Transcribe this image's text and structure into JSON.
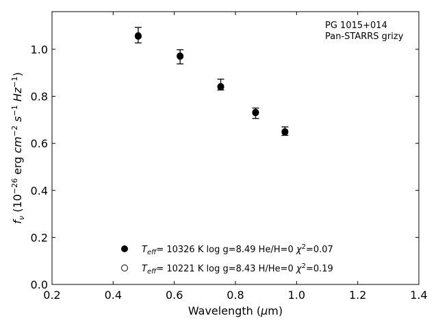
{
  "chart_data": {
    "type": "scatter",
    "annotation": [
      "PG 1015+014",
      "Pan-STARRS grizy"
    ],
    "xlabel": "Wavelength (μm)",
    "ylabel": "f_ν (10^-26 erg cm^-2 s^-1 Hz^-1)",
    "xlim": [
      0.2,
      1.4
    ],
    "ylim": [
      0.0,
      1.16
    ],
    "xticks": [
      "0.2",
      "0.4",
      "0.6",
      "0.8",
      "1.0",
      "1.2",
      "1.4"
    ],
    "yticks": [
      "0.0",
      "0.2",
      "0.4",
      "0.6",
      "0.8",
      "1.0"
    ],
    "grid": false,
    "legend_position": "lower-center",
    "observed": {
      "x": [
        0.482,
        0.619,
        0.752,
        0.866,
        0.962
      ],
      "y": [
        1.06,
        0.968,
        0.85,
        0.728,
        0.652
      ],
      "err": [
        0.033,
        0.03,
        0.023,
        0.022,
        0.018
      ]
    },
    "series": [
      {
        "name": "T_eff= 10326 K  log g=8.49  He/H=0  χ²=0.07",
        "marker": "filled",
        "x": [
          0.482,
          0.619,
          0.752,
          0.866,
          0.962
        ],
        "y": [
          1.055,
          0.972,
          0.842,
          0.732,
          0.648
        ]
      },
      {
        "name": "T_eff= 10221 K  log g=8.43  H/He=0  χ²=0.19",
        "marker": "open",
        "x": [
          0.482,
          0.619,
          0.752,
          0.866,
          0.962
        ],
        "y": [
          1.058,
          0.97,
          0.84,
          0.73,
          0.65
        ]
      }
    ]
  }
}
